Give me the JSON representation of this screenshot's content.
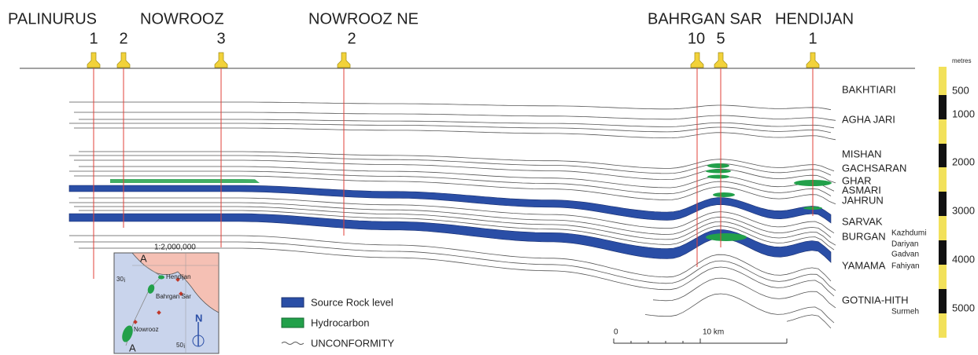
{
  "fields": [
    "PALINURUS",
    "NOWROOZ",
    "NOWROOZ NE",
    "BAHRGAN SAR",
    "HENDIJAN"
  ],
  "wells": [
    "1",
    "2",
    "3",
    "2",
    "10",
    "5",
    "1"
  ],
  "formations": {
    "main": [
      "BAKHTIARI",
      "AGHA JARI",
      "MISHAN",
      "GACHSARAN",
      "GHAR",
      "ASMARI",
      "JAHRUN",
      "SARVAK",
      "BURGAN",
      "YAMAMA",
      "GOTNIA-HITH"
    ],
    "minor": [
      "Kazhdumi",
      "Dariyan",
      "Gadvan",
      "Fahiyan",
      "Surmeh"
    ]
  },
  "depth_scale": {
    "unit": "metres",
    "labels": [
      "500",
      "1000",
      "2000",
      "3000",
      "4000",
      "5000"
    ]
  },
  "legend": [
    "Source Rock level",
    "Hydrocarbon",
    "UNCONFORMITY"
  ],
  "scale_bar": [
    "0",
    "10 km"
  ],
  "inset_map": {
    "scale": "1:2,000,000",
    "section_ends": [
      "A",
      "A"
    ],
    "latitude": "30¡",
    "longitude": "50¡",
    "places": [
      "Hendijan",
      "Bahrgan Sar",
      "Nowrooz"
    ],
    "north": "N"
  }
}
